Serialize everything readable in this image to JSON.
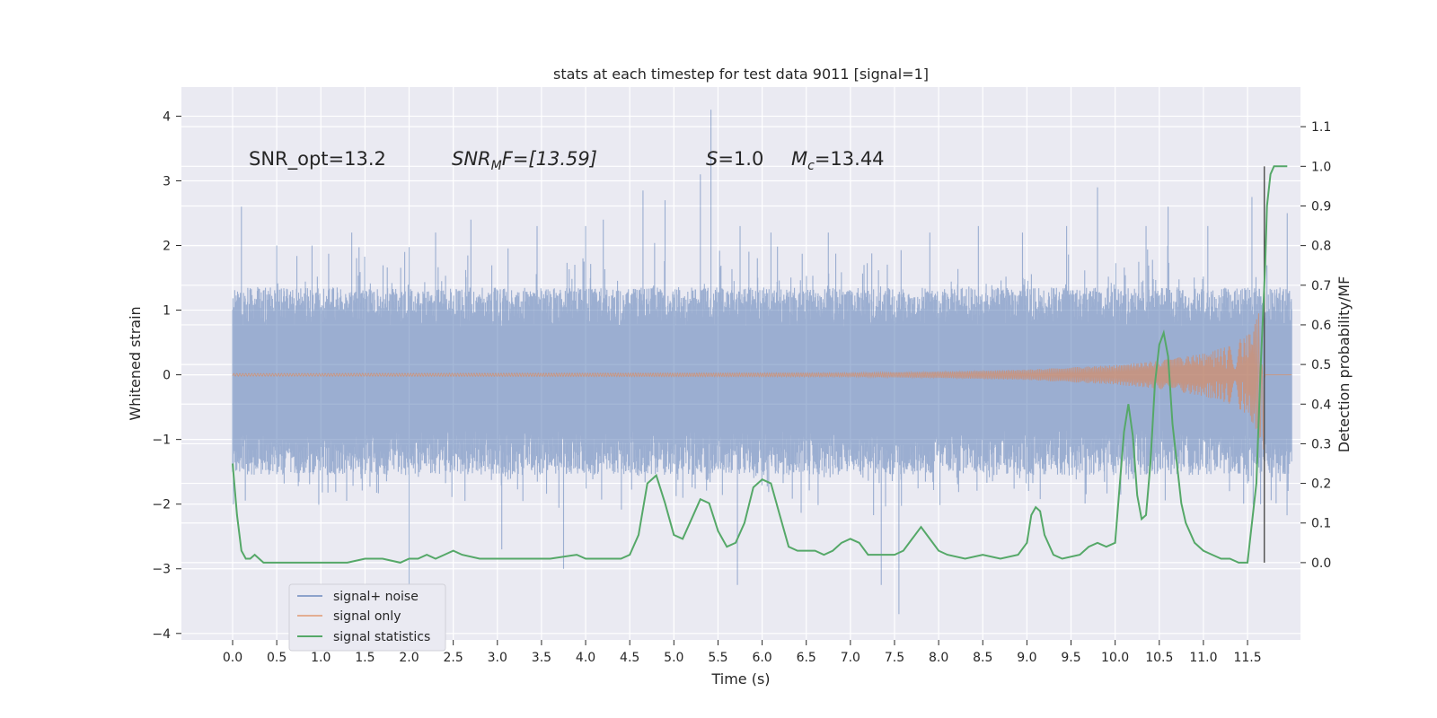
{
  "chart_data": {
    "type": "line",
    "title": "stats at each timestep for test data 9011 [signal=1]",
    "xlabel": "Time (s)",
    "ylabel_left": "Whitened strain",
    "ylabel_right": "Detection probability/MF",
    "xlim": [
      -0.58,
      12.1
    ],
    "ylim_left": [
      -4.1,
      4.45
    ],
    "ylim_right": [
      -0.195,
      1.2
    ],
    "x_ticks": [
      "0.0",
      "0.5",
      "1.0",
      "1.5",
      "2.0",
      "2.5",
      "3.0",
      "3.5",
      "4.0",
      "4.5",
      "5.0",
      "5.5",
      "6.0",
      "6.5",
      "7.0",
      "7.5",
      "8.0",
      "8.5",
      "9.0",
      "9.5",
      "10.0",
      "10.5",
      "11.0",
      "11.5"
    ],
    "x_tick_values": [
      0,
      0.5,
      1,
      1.5,
      2,
      2.5,
      3,
      3.5,
      4,
      4.5,
      5,
      5.5,
      6,
      6.5,
      7,
      7.5,
      8,
      8.5,
      9,
      9.5,
      10,
      10.5,
      11,
      11.5
    ],
    "y_left_ticks": [
      "−4",
      "−3",
      "−2",
      "−1",
      "0",
      "1",
      "2",
      "3",
      "4"
    ],
    "y_left_tick_values": [
      -4,
      -3,
      -2,
      -1,
      0,
      1,
      2,
      3,
      4
    ],
    "y_right_ticks": [
      "0.0",
      "0.1",
      "0.2",
      "0.3",
      "0.4",
      "0.5",
      "0.6",
      "0.7",
      "0.8",
      "0.9",
      "1.0",
      "1.1"
    ],
    "y_right_tick_values": [
      0,
      0.1,
      0.2,
      0.3,
      0.4,
      0.5,
      0.6,
      0.7,
      0.8,
      0.9,
      1.0,
      1.1
    ],
    "grid": true,
    "legend_position": "lower-left",
    "annotations": {
      "snr_opt": "SNR_opt=13.2",
      "snr_mf_sym": "SNR",
      "snr_mf_sub": "M",
      "snr_mf_rest": "F=[13.59]",
      "s_sym": "S",
      "s_rest": "=1.0",
      "mc_sym": "M",
      "mc_sub": "c",
      "mc_rest": "=13.44"
    },
    "marker_line_x": 11.69,
    "series": [
      {
        "name": "signal+ noise",
        "color": "#4c72b0",
        "axis": "left",
        "t_range": [
          0,
          12.0
        ],
        "envelope": {
          "typical_max": 1.35,
          "typical_min": -1.55
        },
        "spikes": [
          [
            0.1,
            2.6
          ],
          [
            0.5,
            2.0
          ],
          [
            0.9,
            2.0
          ],
          [
            1.35,
            2.2
          ],
          [
            1.95,
            1.9
          ],
          [
            2.0,
            -3.3
          ],
          [
            2.3,
            2.2
          ],
          [
            2.7,
            2.4
          ],
          [
            3.05,
            -2.7
          ],
          [
            3.45,
            2.3
          ],
          [
            3.75,
            -3.0
          ],
          [
            4.0,
            2.3
          ],
          [
            4.2,
            2.4
          ],
          [
            4.65,
            2.85
          ],
          [
            4.9,
            2.7
          ],
          [
            5.3,
            3.1
          ],
          [
            5.42,
            4.1
          ],
          [
            5.72,
            -3.25
          ],
          [
            5.75,
            2.3
          ],
          [
            6.1,
            2.2
          ],
          [
            6.75,
            2.2
          ],
          [
            7.35,
            -3.25
          ],
          [
            7.55,
            -3.7
          ],
          [
            7.9,
            2.2
          ],
          [
            8.45,
            2.3
          ],
          [
            8.95,
            2.2
          ],
          [
            9.45,
            2.3
          ],
          [
            9.8,
            2.9
          ],
          [
            10.35,
            2.3
          ],
          [
            10.6,
            2.6
          ],
          [
            11.05,
            2.3
          ],
          [
            11.55,
            2.75
          ],
          [
            11.95,
            2.5
          ]
        ]
      },
      {
        "name": "signal only",
        "color": "#dd8452",
        "axis": "left",
        "amplitude_profile": [
          [
            0,
            0.02
          ],
          [
            7.0,
            0.03
          ],
          [
            8.0,
            0.05
          ],
          [
            9.0,
            0.08
          ],
          [
            10.0,
            0.15
          ],
          [
            10.5,
            0.22
          ],
          [
            11.0,
            0.33
          ],
          [
            11.3,
            0.45
          ],
          [
            11.5,
            0.62
          ],
          [
            11.6,
            0.85
          ],
          [
            11.65,
            1.05
          ],
          [
            11.68,
            1.25
          ],
          [
            11.7,
            0.0
          ],
          [
            12.0,
            0.0
          ]
        ]
      },
      {
        "name": "signal statistics",
        "color": "#55a868",
        "axis": "right",
        "x": [
          0.0,
          0.05,
          0.1,
          0.15,
          0.2,
          0.25,
          0.3,
          0.35,
          0.4,
          0.5,
          0.7,
          1.0,
          1.3,
          1.5,
          1.7,
          1.9,
          2.0,
          2.1,
          2.2,
          2.3,
          2.4,
          2.5,
          2.6,
          2.8,
          3.0,
          3.3,
          3.6,
          3.9,
          4.0,
          4.2,
          4.4,
          4.5,
          4.6,
          4.7,
          4.8,
          4.9,
          5.0,
          5.1,
          5.2,
          5.3,
          5.4,
          5.5,
          5.6,
          5.7,
          5.8,
          5.9,
          6.0,
          6.1,
          6.2,
          6.3,
          6.4,
          6.5,
          6.6,
          6.7,
          6.8,
          6.9,
          7.0,
          7.1,
          7.2,
          7.3,
          7.5,
          7.6,
          7.7,
          7.8,
          7.9,
          8.0,
          8.1,
          8.3,
          8.5,
          8.7,
          8.9,
          9.0,
          9.05,
          9.1,
          9.15,
          9.2,
          9.3,
          9.4,
          9.6,
          9.7,
          9.8,
          9.9,
          10.0,
          10.1,
          10.15,
          10.2,
          10.25,
          10.3,
          10.35,
          10.4,
          10.45,
          10.5,
          10.55,
          10.6,
          10.65,
          10.7,
          10.75,
          10.8,
          10.9,
          11.0,
          11.1,
          11.2,
          11.3,
          11.4,
          11.5,
          11.6,
          11.65,
          11.7,
          11.72,
          11.76,
          11.8,
          11.9,
          11.95
        ],
        "y": [
          0.25,
          0.12,
          0.03,
          0.01,
          0.01,
          0.02,
          0.01,
          0.0,
          0.0,
          0.0,
          0.0,
          0.0,
          0.0,
          0.01,
          0.01,
          0.0,
          0.01,
          0.01,
          0.02,
          0.01,
          0.02,
          0.03,
          0.02,
          0.01,
          0.01,
          0.01,
          0.01,
          0.02,
          0.01,
          0.01,
          0.01,
          0.02,
          0.07,
          0.2,
          0.22,
          0.15,
          0.07,
          0.06,
          0.11,
          0.16,
          0.15,
          0.08,
          0.04,
          0.05,
          0.1,
          0.19,
          0.21,
          0.2,
          0.12,
          0.04,
          0.03,
          0.03,
          0.03,
          0.02,
          0.03,
          0.05,
          0.06,
          0.05,
          0.02,
          0.02,
          0.02,
          0.03,
          0.06,
          0.09,
          0.06,
          0.03,
          0.02,
          0.01,
          0.02,
          0.01,
          0.02,
          0.05,
          0.12,
          0.14,
          0.13,
          0.07,
          0.02,
          0.01,
          0.02,
          0.04,
          0.05,
          0.04,
          0.05,
          0.33,
          0.4,
          0.32,
          0.17,
          0.11,
          0.12,
          0.25,
          0.45,
          0.55,
          0.58,
          0.52,
          0.35,
          0.25,
          0.15,
          0.1,
          0.05,
          0.03,
          0.02,
          0.01,
          0.01,
          0.0,
          0.0,
          0.2,
          0.5,
          0.75,
          0.9,
          0.98,
          1.0,
          1.0,
          1.0
        ]
      }
    ]
  }
}
